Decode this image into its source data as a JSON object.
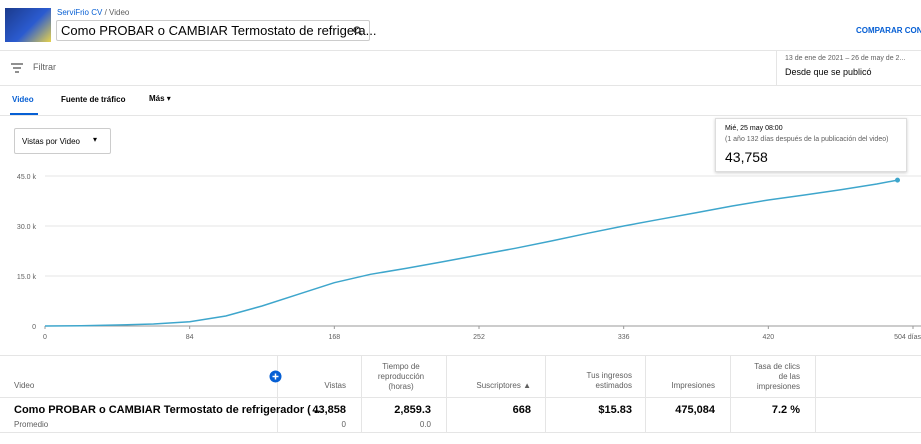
{
  "header": {
    "channel": "ServiFrio CV",
    "separator": "/",
    "section": "Video",
    "video_title": "Como PROBAR o CAMBIAR Termostato de refrigera...",
    "compare": "COMPARAR CON",
    "date_range": "13 de ene de 2021 – 26 de may de 2...",
    "date_label": "Desde que se publicó"
  },
  "filter": "Filtrar",
  "tabs": [
    "Video",
    "Fuente de tráfico",
    "Más"
  ],
  "metric_selector": "Vistas por Video",
  "tooltip": {
    "date": "Mié, 25 may 08:00",
    "note": "(1 año 132 días después de la publicación del video)",
    "value": "43,758"
  },
  "chart_data": {
    "type": "line",
    "color": "#3ea6cc",
    "x": [
      0,
      21,
      42,
      63,
      84,
      105,
      126,
      147,
      168,
      189,
      210,
      231,
      252,
      273,
      294,
      315,
      336,
      357,
      378,
      399,
      420,
      441,
      462,
      483,
      495
    ],
    "values": [
      0,
      100,
      300,
      600,
      1300,
      3000,
      6000,
      9500,
      13000,
      15500,
      17300,
      19300,
      21300,
      23300,
      25500,
      27800,
      30000,
      32000,
      34000,
      36000,
      37800,
      39300,
      40900,
      42600,
      43758
    ],
    "xlim": [
      0,
      504
    ],
    "xticks": [
      0,
      84,
      168,
      252,
      336,
      420,
      {
        "value": 504,
        "label": "504 días"
      }
    ],
    "ylim": [
      0,
      45000
    ],
    "yticks": [
      {
        "value": 0,
        "label": "0"
      },
      {
        "value": 15000,
        "label": "15.0 k"
      },
      {
        "value": 30000,
        "label": "30.0 k"
      },
      {
        "value": 45000,
        "label": "45.0 k"
      }
    ],
    "grid": true
  },
  "table": {
    "headers": [
      "Video",
      "Vistas",
      "Tiempo de reproducción (horas)",
      "Suscriptores",
      "Tus ingresos estimados",
      "Impresiones",
      "Tasa de clics de las impresiones"
    ],
    "rows": [
      [
        "Como PROBAR o CAMBIAR Termostato de refrigerador ( ...",
        "43,858",
        "2,859.3",
        "668",
        "$15.83",
        "475,084",
        "7.2 %"
      ],
      [
        "Promedio",
        "0",
        "0.0"
      ]
    ]
  }
}
